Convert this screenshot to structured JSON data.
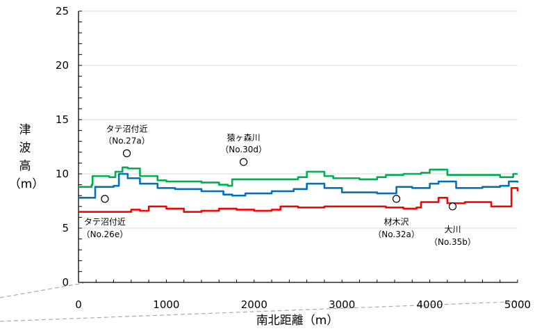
{
  "chart_data": {
    "type": "line",
    "title": "",
    "xlabel": "南北距離（m）",
    "ylabel_chars": [
      "津",
      "波",
      "高",
      "（m）"
    ],
    "xlim": [
      0,
      5000
    ],
    "ylim": [
      0,
      25
    ],
    "x_ticks": [
      0,
      1000,
      2000,
      3000,
      4000,
      5000
    ],
    "y_ticks": [
      0,
      5,
      10,
      15,
      20,
      25
    ],
    "grid": "horizontal",
    "legend": "none",
    "series": [
      {
        "color": "#00b050",
        "points": [
          [
            0,
            8.8
          ],
          [
            150,
            9.0
          ],
          [
            160,
            9.8
          ],
          [
            350,
            9.7
          ],
          [
            420,
            10.2
          ],
          [
            500,
            10.6
          ],
          [
            560,
            10.5
          ],
          [
            700,
            9.8
          ],
          [
            900,
            9.4
          ],
          [
            1000,
            9.3
          ],
          [
            1200,
            9.3
          ],
          [
            1400,
            9.2
          ],
          [
            1600,
            9.0
          ],
          [
            1700,
            8.9
          ],
          [
            1750,
            9.5
          ],
          [
            1900,
            9.5
          ],
          [
            2200,
            9.5
          ],
          [
            2500,
            9.7
          ],
          [
            2600,
            10.2
          ],
          [
            2800,
            9.8
          ],
          [
            2900,
            9.6
          ],
          [
            3200,
            9.5
          ],
          [
            3400,
            9.7
          ],
          [
            3500,
            9.9
          ],
          [
            3700,
            10.0
          ],
          [
            3900,
            10.1
          ],
          [
            4000,
            10.4
          ],
          [
            4200,
            9.9
          ],
          [
            4500,
            9.9
          ],
          [
            4800,
            9.7
          ],
          [
            4900,
            9.7
          ],
          [
            4950,
            10.0
          ],
          [
            5000,
            10.0
          ]
        ]
      },
      {
        "color": "#0070c0",
        "points": [
          [
            0,
            7.8
          ],
          [
            150,
            7.8
          ],
          [
            190,
            8.8
          ],
          [
            400,
            8.9
          ],
          [
            460,
            10.0
          ],
          [
            560,
            9.6
          ],
          [
            700,
            9.1
          ],
          [
            900,
            8.7
          ],
          [
            1100,
            8.6
          ],
          [
            1400,
            8.4
          ],
          [
            1650,
            8.1
          ],
          [
            1750,
            8.0
          ],
          [
            1900,
            8.2
          ],
          [
            2200,
            8.4
          ],
          [
            2450,
            8.6
          ],
          [
            2600,
            9.1
          ],
          [
            2800,
            8.7
          ],
          [
            3000,
            8.3
          ],
          [
            3400,
            8.2
          ],
          [
            3600,
            8.2
          ],
          [
            3620,
            8.8
          ],
          [
            3800,
            8.7
          ],
          [
            4000,
            9.1
          ],
          [
            4100,
            9.3
          ],
          [
            4300,
            8.7
          ],
          [
            4600,
            8.8
          ],
          [
            4800,
            8.9
          ],
          [
            4900,
            9.3
          ],
          [
            5000,
            9.2
          ]
        ]
      },
      {
        "color": "#ff0000",
        "points": [
          [
            0,
            6.5
          ],
          [
            300,
            6.5
          ],
          [
            600,
            6.7
          ],
          [
            700,
            6.6
          ],
          [
            800,
            7.0
          ],
          [
            1000,
            6.8
          ],
          [
            1200,
            6.5
          ],
          [
            1400,
            6.6
          ],
          [
            1600,
            6.8
          ],
          [
            1800,
            6.7
          ],
          [
            2000,
            6.6
          ],
          [
            2200,
            6.7
          ],
          [
            2300,
            7.0
          ],
          [
            2500,
            6.9
          ],
          [
            2800,
            7.0
          ],
          [
            3000,
            7.0
          ],
          [
            3300,
            7.0
          ],
          [
            3500,
            6.9
          ],
          [
            3700,
            6.8
          ],
          [
            3850,
            6.9
          ],
          [
            3900,
            7.4
          ],
          [
            4100,
            7.8
          ],
          [
            4200,
            7.3
          ],
          [
            4400,
            7.4
          ],
          [
            4700,
            7.0
          ],
          [
            4900,
            7.0
          ],
          [
            4930,
            8.7
          ],
          [
            5000,
            8.4
          ]
        ]
      }
    ],
    "annotations": [
      {
        "x": 300,
        "y": 7.7,
        "label": "タテ沼付近",
        "sub": "（No.26e）",
        "pos": "below"
      },
      {
        "x": 550,
        "y": 11.9,
        "label": "タテ沼付近",
        "sub": "（No.27a）",
        "pos": "above"
      },
      {
        "x": 1880,
        "y": 11.1,
        "label": "猿ヶ森川",
        "sub": "（No.30d）",
        "pos": "above"
      },
      {
        "x": 3620,
        "y": 7.7,
        "label": "材木沢",
        "sub": "（No.32a）",
        "pos": "below"
      },
      {
        "x": 4260,
        "y": 7.0,
        "label": "大川",
        "sub": "（No.35b）",
        "pos": "below"
      }
    ]
  }
}
